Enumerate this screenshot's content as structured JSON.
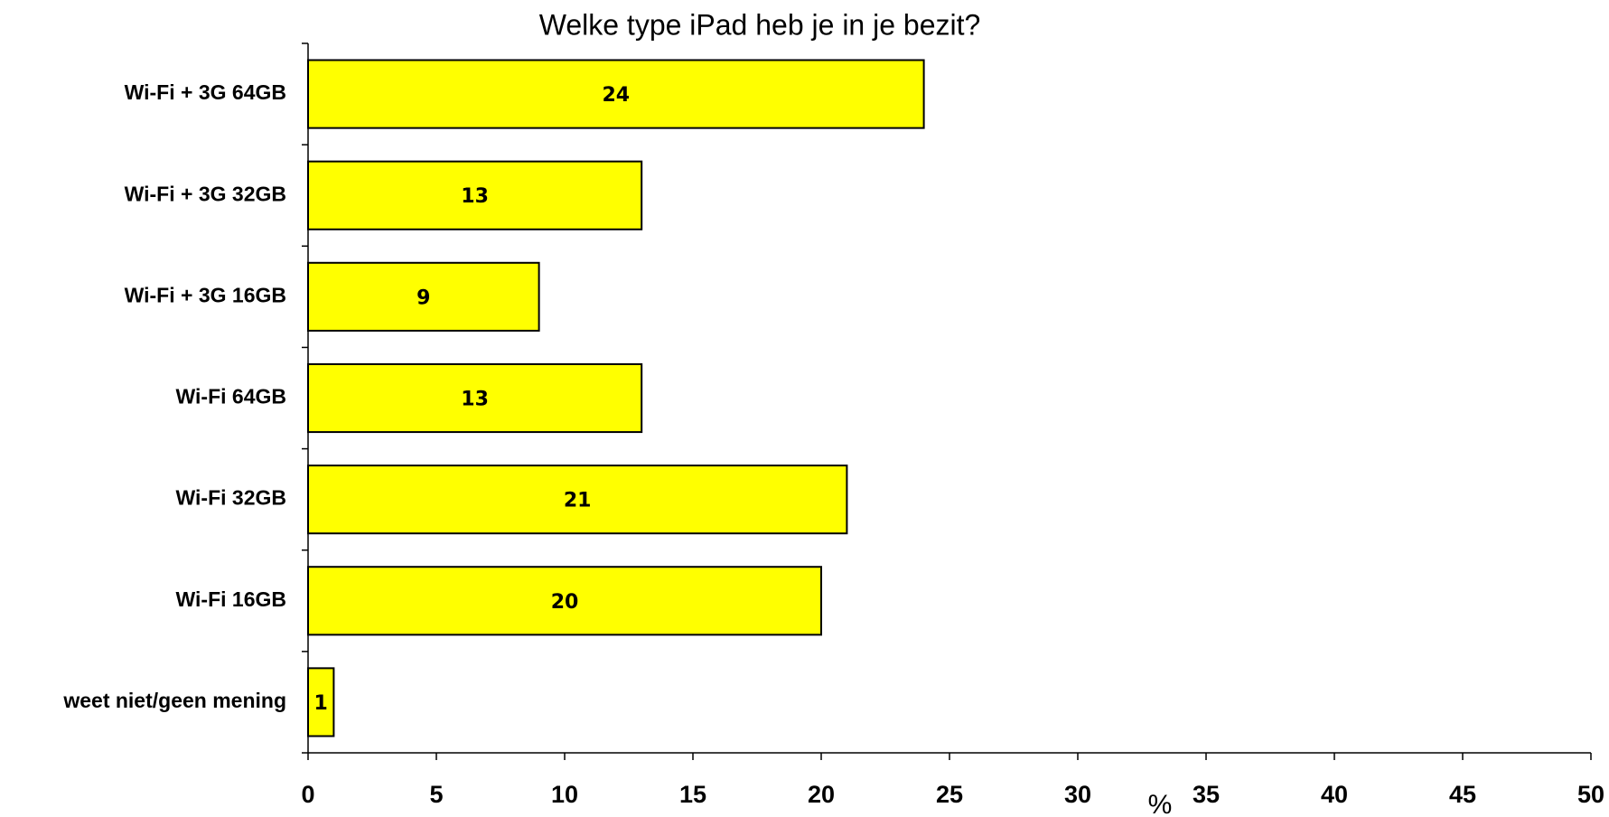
{
  "chart_data": {
    "type": "barh",
    "title": "Welke type iPad heb je in je bezit?",
    "categories": [
      "Wi-Fi + 3G 64GB",
      "Wi-Fi + 3G 32GB",
      "Wi-Fi + 3G 16GB",
      "Wi-Fi 64GB",
      "Wi-Fi 32GB",
      "Wi-Fi 16GB",
      "weet niet/geen mening"
    ],
    "values": [
      24,
      13,
      9,
      13,
      21,
      20,
      1
    ],
    "color": "#ffff00",
    "xlabel": "%",
    "xlim": [
      0,
      50
    ],
    "xticks": [
      0,
      5,
      10,
      15,
      20,
      25,
      30,
      35,
      40,
      45,
      50
    ]
  }
}
